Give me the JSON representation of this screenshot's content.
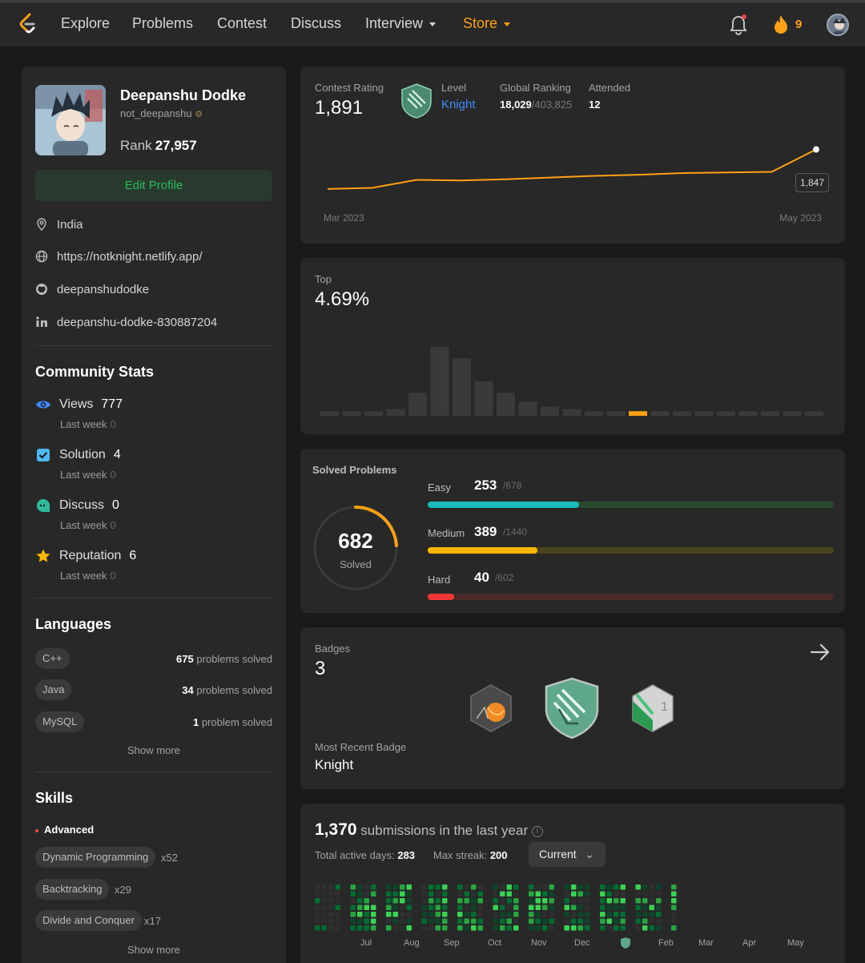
{
  "nav": {
    "items": [
      "Explore",
      "Problems",
      "Contest",
      "Discuss",
      "Interview",
      "Store"
    ],
    "streak_count": "9",
    "colors": {
      "accent": "#ffa116",
      "bg": "#282828"
    }
  },
  "profile": {
    "name": "Deepanshu Dodke",
    "handle": "not_deepanshu",
    "rank_label": "Rank",
    "rank_value": "27,957",
    "edit_label": "Edit Profile",
    "location": "India",
    "website": "https://notknight.netlify.app/",
    "github": "deepanshudodke",
    "linkedin": "deepanshu-dodke-830887204"
  },
  "community": {
    "title": "Community Stats",
    "last_week_label": "Last week",
    "stats": [
      {
        "label": "Views",
        "value": "777",
        "last_week": "0"
      },
      {
        "label": "Solution",
        "value": "4",
        "last_week": "0"
      },
      {
        "label": "Discuss",
        "value": "0",
        "last_week": "0"
      },
      {
        "label": "Reputation",
        "value": "6",
        "last_week": "0"
      }
    ]
  },
  "languages": {
    "title": "Languages",
    "items": [
      {
        "name": "C++",
        "count": "675",
        "suffix": "problems solved"
      },
      {
        "name": "Java",
        "count": "34",
        "suffix": "problems solved"
      },
      {
        "name": "MySQL",
        "count": "1",
        "suffix": "problem solved"
      }
    ],
    "show_more": "Show more"
  },
  "skills": {
    "title": "Skills",
    "level": "Advanced",
    "items": [
      {
        "name": "Dynamic Programming",
        "count": "x52"
      },
      {
        "name": "Backtracking",
        "count": "x29"
      },
      {
        "name": "Divide and Conquer",
        "count": "x17"
      }
    ],
    "show_more": "Show more"
  },
  "contest": {
    "rating_label": "Contest Rating",
    "rating": "1,891",
    "level_label": "Level",
    "level": "Knight",
    "global_label": "Global Ranking",
    "global_rank": "18,029",
    "global_total": "/403,825",
    "attended_label": "Attended",
    "attended": "12",
    "tooltip": "1,847",
    "x_start": "Mar 2023",
    "x_end": "May 2023"
  },
  "chart_data": [
    {
      "type": "line",
      "title": "Contest Rating",
      "x": [
        "Mar 2023",
        "",
        "",
        "",
        "",
        "",
        "",
        "",
        "",
        "",
        "",
        "May 2023"
      ],
      "values": [
        1500,
        1510,
        1580,
        1575,
        1585,
        1600,
        1615,
        1625,
        1640,
        1645,
        1650,
        1847
      ],
      "ylim": [
        1450,
        1900
      ]
    },
    {
      "type": "bar",
      "title": "Top",
      "values": [
        2,
        2,
        2,
        3,
        10,
        30,
        25,
        15,
        10,
        6,
        4,
        3,
        2,
        2,
        2,
        2,
        2,
        2,
        2,
        2,
        2,
        2,
        2
      ],
      "highlight_index": 14,
      "highlight_label": "4.69%"
    }
  ],
  "top": {
    "label": "Top",
    "value": "4.69%"
  },
  "solved": {
    "title": "Solved Problems",
    "total": "682",
    "total_label": "Solved",
    "ring_fraction": 0.24,
    "rows": [
      {
        "label": "Easy",
        "solved": "253",
        "total": "/678",
        "fraction": 0.373,
        "color": "#1cbaba",
        "track": "#2a4a2f"
      },
      {
        "label": "Medium",
        "solved": "389",
        "total": "/1440",
        "fraction": 0.27,
        "color": "#ffb800",
        "track": "#4a4320"
      },
      {
        "label": "Hard",
        "solved": "40",
        "total": "/602",
        "fraction": 0.066,
        "color": "#f63737",
        "track": "#4a2a26"
      }
    ]
  },
  "badges": {
    "title": "Badges",
    "count": "3",
    "recent_label": "Most Recent Badge",
    "recent": "Knight"
  },
  "submissions": {
    "count": "1,370",
    "suffix": "submissions in the last year",
    "active_label": "Total active days:",
    "active": "283",
    "streak_label": "Max streak:",
    "streak": "200",
    "dropdown": "Current",
    "months": [
      "Jul",
      "Aug",
      "Sep",
      "Oct",
      "Nov",
      "Dec",
      "Feb",
      "Mar",
      "Apr",
      "May"
    ]
  }
}
